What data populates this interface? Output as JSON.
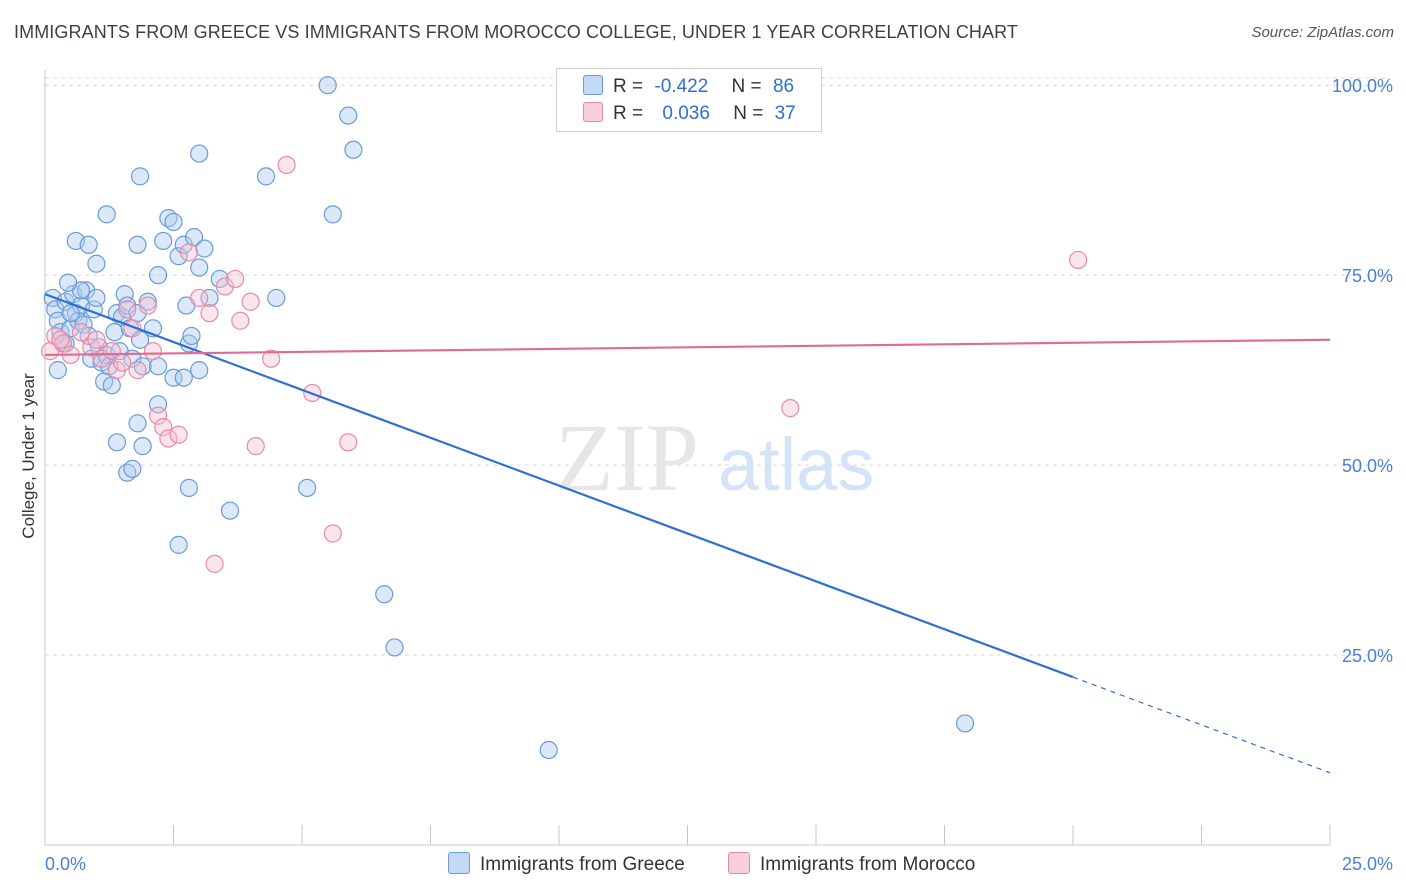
{
  "title": "IMMIGRANTS FROM GREECE VS IMMIGRANTS FROM MOROCCO COLLEGE, UNDER 1 YEAR CORRELATION CHART",
  "source": "Source: ZipAtlas.com",
  "watermark": {
    "zip": "ZIP",
    "atlas": "atlas"
  },
  "colors": {
    "greece": "#6b9bd8",
    "greece_fill": "#aecbf0",
    "greece_line": "#2f6fd1",
    "morocco": "#e78aa7",
    "morocco_fill": "#f6bfd0",
    "morocco_line": "#e06a93",
    "tick": "#4a7fd6",
    "grid": "#d9d9d9"
  },
  "legend": {
    "rows": [
      {
        "r_label": "R =",
        "r_value": "-0.422",
        "n_label": "N =",
        "n_value": "86"
      },
      {
        "r_label": "R =",
        "r_value": "0.036",
        "n_label": "N =",
        "n_value": "37"
      }
    ]
  },
  "bottom_legend": {
    "greece": "Immigrants from Greece",
    "morocco": "Immigrants from Morocco"
  },
  "chart_data": {
    "type": "scatter",
    "title": "IMMIGRANTS FROM GREECE VS IMMIGRANTS FROM MOROCCO COLLEGE, UNDER 1 YEAR CORRELATION CHART",
    "xlabel": "",
    "ylabel": "College, Under 1 year",
    "xlim": [
      0,
      25
    ],
    "ylim": [
      0,
      102
    ],
    "x_tick_labels": [
      "0.0%",
      "25.0%"
    ],
    "y_ticks": [
      25,
      50,
      75,
      100
    ],
    "y_tick_labels": [
      "25.0%",
      "50.0%",
      "75.0%",
      "100.0%"
    ],
    "grid": true,
    "legend_position": "top-center",
    "series": [
      {
        "name": "Immigrants from Greece",
        "R": -0.422,
        "N": 86,
        "trend": {
          "x0": 0.0,
          "y0": 72.5,
          "x1": 25.0,
          "y1": 9.5,
          "solid_until_x": 20.0
        },
        "points": [
          [
            0.15,
            72.0
          ],
          [
            0.2,
            70.5
          ],
          [
            0.25,
            69.0
          ],
          [
            0.3,
            67.5
          ],
          [
            0.35,
            66.0
          ],
          [
            0.4,
            71.5
          ],
          [
            0.5,
            68.0
          ],
          [
            0.55,
            72.5
          ],
          [
            0.6,
            70.0
          ],
          [
            0.65,
            69.0
          ],
          [
            0.7,
            71.0
          ],
          [
            0.75,
            68.5
          ],
          [
            0.8,
            73.0
          ],
          [
            0.85,
            67.0
          ],
          [
            0.9,
            64.0
          ],
          [
            0.95,
            70.5
          ],
          [
            1.0,
            72.0
          ],
          [
            1.05,
            65.5
          ],
          [
            1.1,
            63.5
          ],
          [
            1.15,
            61.0
          ],
          [
            1.2,
            64.5
          ],
          [
            1.25,
            63.0
          ],
          [
            1.3,
            60.5
          ],
          [
            1.35,
            67.5
          ],
          [
            1.4,
            70.0
          ],
          [
            1.45,
            65.0
          ],
          [
            1.5,
            69.5
          ],
          [
            1.55,
            72.5
          ],
          [
            1.6,
            71.0
          ],
          [
            1.65,
            68.0
          ],
          [
            1.7,
            64.0
          ],
          [
            1.8,
            70.0
          ],
          [
            1.85,
            66.5
          ],
          [
            1.9,
            63.0
          ],
          [
            2.0,
            71.5
          ],
          [
            2.1,
            68.0
          ],
          [
            2.2,
            75.0
          ],
          [
            2.3,
            79.5
          ],
          [
            2.4,
            82.5
          ],
          [
            2.5,
            82.0
          ],
          [
            2.6,
            77.5
          ],
          [
            2.7,
            79.0
          ],
          [
            2.8,
            66.0
          ],
          [
            2.9,
            80.0
          ],
          [
            3.0,
            76.0
          ],
          [
            3.1,
            78.5
          ],
          [
            1.0,
            76.5
          ],
          [
            1.2,
            83.0
          ],
          [
            1.8,
            79.0
          ],
          [
            1.85,
            88.0
          ],
          [
            0.6,
            79.5
          ],
          [
            0.85,
            79.0
          ],
          [
            1.4,
            53.0
          ],
          [
            1.6,
            49.0
          ],
          [
            1.7,
            49.5
          ],
          [
            1.8,
            55.5
          ],
          [
            1.9,
            52.5
          ],
          [
            2.2,
            58.0
          ],
          [
            2.2,
            63.0
          ],
          [
            2.5,
            61.5
          ],
          [
            2.7,
            61.5
          ],
          [
            2.75,
            71.0
          ],
          [
            2.85,
            67.0
          ],
          [
            3.0,
            62.5
          ],
          [
            3.2,
            72.0
          ],
          [
            3.4,
            74.5
          ],
          [
            3.6,
            44.0
          ],
          [
            2.8,
            47.0
          ],
          [
            2.6,
            39.5
          ],
          [
            4.5,
            72.0
          ],
          [
            4.3,
            88.0
          ],
          [
            3.0,
            91.0
          ],
          [
            5.5,
            100.0
          ],
          [
            5.9,
            96.0
          ],
          [
            6.0,
            91.5
          ],
          [
            5.6,
            83.0
          ],
          [
            5.1,
            47.0
          ],
          [
            6.6,
            33.0
          ],
          [
            6.8,
            26.0
          ],
          [
            9.8,
            12.5
          ],
          [
            17.9,
            16.0
          ],
          [
            0.25,
            62.5
          ],
          [
            0.4,
            66.0
          ],
          [
            0.5,
            70.0
          ],
          [
            0.7,
            73.0
          ],
          [
            0.45,
            74.0
          ]
        ]
      },
      {
        "name": "Immigrants from Morocco",
        "R": 0.036,
        "N": 37,
        "trend": {
          "x0": 0.0,
          "y0": 64.5,
          "x1": 25.0,
          "y1": 66.5
        },
        "points": [
          [
            0.1,
            65.0
          ],
          [
            0.2,
            67.0
          ],
          [
            0.35,
            66.0
          ],
          [
            0.5,
            64.5
          ],
          [
            0.7,
            67.5
          ],
          [
            0.9,
            65.5
          ],
          [
            1.0,
            66.5
          ],
          [
            1.1,
            64.0
          ],
          [
            1.3,
            65.0
          ],
          [
            1.4,
            62.5
          ],
          [
            1.5,
            63.5
          ],
          [
            1.6,
            70.5
          ],
          [
            1.7,
            68.0
          ],
          [
            1.8,
            62.5
          ],
          [
            2.0,
            71.0
          ],
          [
            2.1,
            65.0
          ],
          [
            2.2,
            56.5
          ],
          [
            2.3,
            55.0
          ],
          [
            2.4,
            53.5
          ],
          [
            2.6,
            54.0
          ],
          [
            2.8,
            78.0
          ],
          [
            3.0,
            72.0
          ],
          [
            3.2,
            70.0
          ],
          [
            3.5,
            73.5
          ],
          [
            3.7,
            74.5
          ],
          [
            3.8,
            69.0
          ],
          [
            4.0,
            71.5
          ],
          [
            4.1,
            52.5
          ],
          [
            3.3,
            37.0
          ],
          [
            4.4,
            64.0
          ],
          [
            4.7,
            89.5
          ],
          [
            5.2,
            59.5
          ],
          [
            5.6,
            41.0
          ],
          [
            5.9,
            53.0
          ],
          [
            0.3,
            66.5
          ],
          [
            14.5,
            57.5
          ],
          [
            20.1,
            77.0
          ]
        ]
      }
    ]
  }
}
